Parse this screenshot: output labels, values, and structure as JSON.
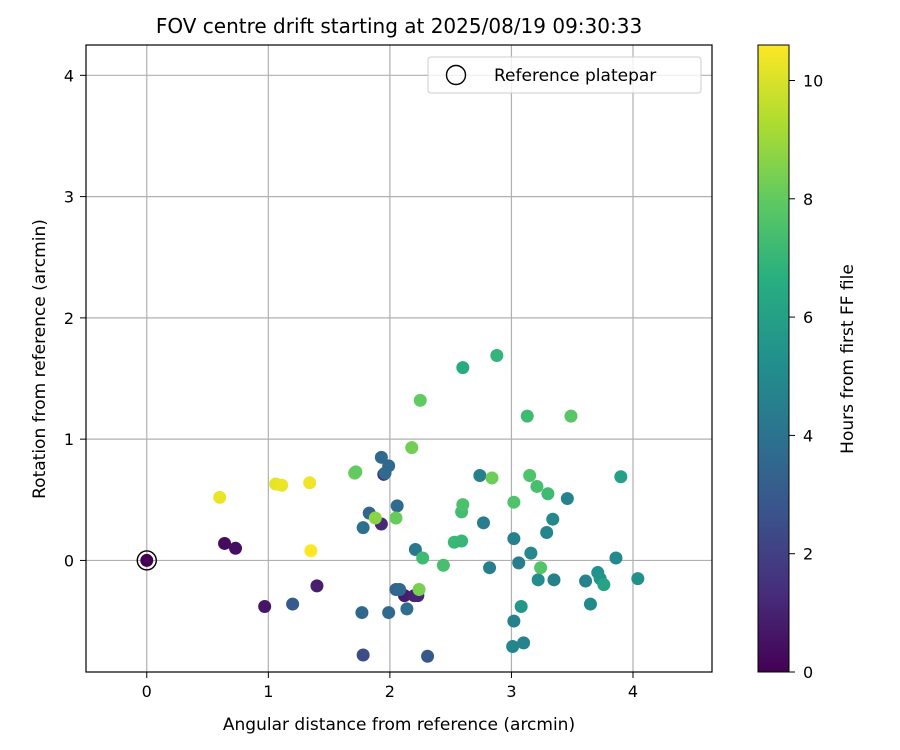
{
  "chart_data": {
    "type": "scatter",
    "title": "FOV centre drift starting at 2025/08/19 09:30:33",
    "xlabel": "Angular distance from reference (arcmin)",
    "ylabel": "Rotation from reference (arcmin)",
    "xlim": [
      -0.5,
      4.65
    ],
    "ylim": [
      -0.92,
      4.25
    ],
    "xticks": [
      "0",
      "1",
      "2",
      "3",
      "4"
    ],
    "yticks": [
      "0",
      "1",
      "2",
      "3",
      "4"
    ],
    "grid": true,
    "legend": {
      "position": "top-right",
      "entries": [
        "Reference platepar"
      ]
    },
    "colorbar": {
      "label": "Hours from first FF file",
      "range": [
        0,
        10.6
      ],
      "ticks": [
        "0",
        "2",
        "4",
        "6",
        "8",
        "10"
      ],
      "colormap": "viridis"
    },
    "reference_point": {
      "x": 0,
      "y": 0,
      "hours": 0
    },
    "points": [
      {
        "x": 0.64,
        "y": 0.14,
        "hours": 0.3
      },
      {
        "x": 0.73,
        "y": 0.1,
        "hours": 0.4
      },
      {
        "x": 0.97,
        "y": -0.38,
        "hours": 0.6
      },
      {
        "x": 1.4,
        "y": -0.21,
        "hours": 0.9
      },
      {
        "x": 1.93,
        "y": 0.3,
        "hours": 1.2
      },
      {
        "x": 1.95,
        "y": 0.71,
        "hours": 1.3
      },
      {
        "x": 2.12,
        "y": -0.29,
        "hours": 0.8
      },
      {
        "x": 2.2,
        "y": -0.29,
        "hours": 1.0
      },
      {
        "x": 2.23,
        "y": -0.29,
        "hours": 1.1
      },
      {
        "x": 1.2,
        "y": -0.36,
        "hours": 3.0
      },
      {
        "x": 1.77,
        "y": -0.43,
        "hours": 3.5
      },
      {
        "x": 1.78,
        "y": -0.78,
        "hours": 2.4
      },
      {
        "x": 2.31,
        "y": -0.79,
        "hours": 2.9
      },
      {
        "x": 1.78,
        "y": 0.27,
        "hours": 3.9
      },
      {
        "x": 1.83,
        "y": 0.39,
        "hours": 3.4
      },
      {
        "x": 1.93,
        "y": 0.85,
        "hours": 3.6
      },
      {
        "x": 1.96,
        "y": 0.72,
        "hours": 3.7
      },
      {
        "x": 1.99,
        "y": 0.78,
        "hours": 3.6
      },
      {
        "x": 1.99,
        "y": -0.43,
        "hours": 3.6
      },
      {
        "x": 2.05,
        "y": -0.24,
        "hours": 3.4
      },
      {
        "x": 2.08,
        "y": -0.24,
        "hours": 3.6
      },
      {
        "x": 2.06,
        "y": 0.45,
        "hours": 3.7
      },
      {
        "x": 2.14,
        "y": -0.4,
        "hours": 3.8
      },
      {
        "x": 2.21,
        "y": 0.09,
        "hours": 4.2
      },
      {
        "x": 2.74,
        "y": 0.7,
        "hours": 4.6
      },
      {
        "x": 2.77,
        "y": 0.31,
        "hours": 4.4
      },
      {
        "x": 2.82,
        "y": -0.06,
        "hours": 4.5
      },
      {
        "x": 3.02,
        "y": 0.18,
        "hours": 4.6
      },
      {
        "x": 3.06,
        "y": -0.02,
        "hours": 4.5
      },
      {
        "x": 3.02,
        "y": -0.5,
        "hours": 4.6
      },
      {
        "x": 3.01,
        "y": -0.71,
        "hours": 4.8
      },
      {
        "x": 3.1,
        "y": -0.68,
        "hours": 4.7
      },
      {
        "x": 3.08,
        "y": -0.38,
        "hours": 5.6
      },
      {
        "x": 3.16,
        "y": 0.06,
        "hours": 4.9
      },
      {
        "x": 3.22,
        "y": -0.16,
        "hours": 5.1
      },
      {
        "x": 3.29,
        "y": 0.23,
        "hours": 4.8
      },
      {
        "x": 3.34,
        "y": 0.34,
        "hours": 4.9
      },
      {
        "x": 3.35,
        "y": -0.16,
        "hours": 4.6
      },
      {
        "x": 3.46,
        "y": 0.51,
        "hours": 4.7
      },
      {
        "x": 3.61,
        "y": -0.17,
        "hours": 4.7
      },
      {
        "x": 3.65,
        "y": -0.36,
        "hours": 5.0
      },
      {
        "x": 3.71,
        "y": -0.1,
        "hours": 5.3
      },
      {
        "x": 3.73,
        "y": -0.15,
        "hours": 5.5
      },
      {
        "x": 3.76,
        "y": -0.2,
        "hours": 6.1
      },
      {
        "x": 3.86,
        "y": 0.02,
        "hours": 4.9
      },
      {
        "x": 3.9,
        "y": 0.69,
        "hours": 6.0
      },
      {
        "x": 4.04,
        "y": -0.15,
        "hours": 5.3
      },
      {
        "x": 2.27,
        "y": 0.02,
        "hours": 7.2
      },
      {
        "x": 2.44,
        "y": -0.04,
        "hours": 7.4
      },
      {
        "x": 2.53,
        "y": 0.15,
        "hours": 7.1
      },
      {
        "x": 2.59,
        "y": 0.16,
        "hours": 7.0
      },
      {
        "x": 2.59,
        "y": 0.4,
        "hours": 7.3
      },
      {
        "x": 2.6,
        "y": 0.46,
        "hours": 7.5
      },
      {
        "x": 2.6,
        "y": 1.59,
        "hours": 6.5
      },
      {
        "x": 2.88,
        "y": 1.69,
        "hours": 6.9
      },
      {
        "x": 3.02,
        "y": 0.48,
        "hours": 7.6
      },
      {
        "x": 3.13,
        "y": 1.19,
        "hours": 7.2
      },
      {
        "x": 3.15,
        "y": 0.7,
        "hours": 7.6
      },
      {
        "x": 3.21,
        "y": 0.61,
        "hours": 7.4
      },
      {
        "x": 3.24,
        "y": -0.06,
        "hours": 7.7
      },
      {
        "x": 3.3,
        "y": 0.55,
        "hours": 7.2
      },
      {
        "x": 3.49,
        "y": 1.19,
        "hours": 7.8
      },
      {
        "x": 1.71,
        "y": 0.72,
        "hours": 8.3
      },
      {
        "x": 1.72,
        "y": 0.73,
        "hours": 8.0
      },
      {
        "x": 1.88,
        "y": 0.35,
        "hours": 8.7
      },
      {
        "x": 2.05,
        "y": 0.35,
        "hours": 8.1
      },
      {
        "x": 2.18,
        "y": 0.93,
        "hours": 8.3
      },
      {
        "x": 2.25,
        "y": 1.32,
        "hours": 8.0
      },
      {
        "x": 2.24,
        "y": -0.24,
        "hours": 8.4
      },
      {
        "x": 2.84,
        "y": 0.68,
        "hours": 8.2
      },
      {
        "x": 0.6,
        "y": 0.52,
        "hours": 10.3
      },
      {
        "x": 1.06,
        "y": 0.63,
        "hours": 10.2
      },
      {
        "x": 1.11,
        "y": 0.62,
        "hours": 10.3
      },
      {
        "x": 1.34,
        "y": 0.64,
        "hours": 10.4
      },
      {
        "x": 1.35,
        "y": 0.08,
        "hours": 10.6
      }
    ]
  }
}
